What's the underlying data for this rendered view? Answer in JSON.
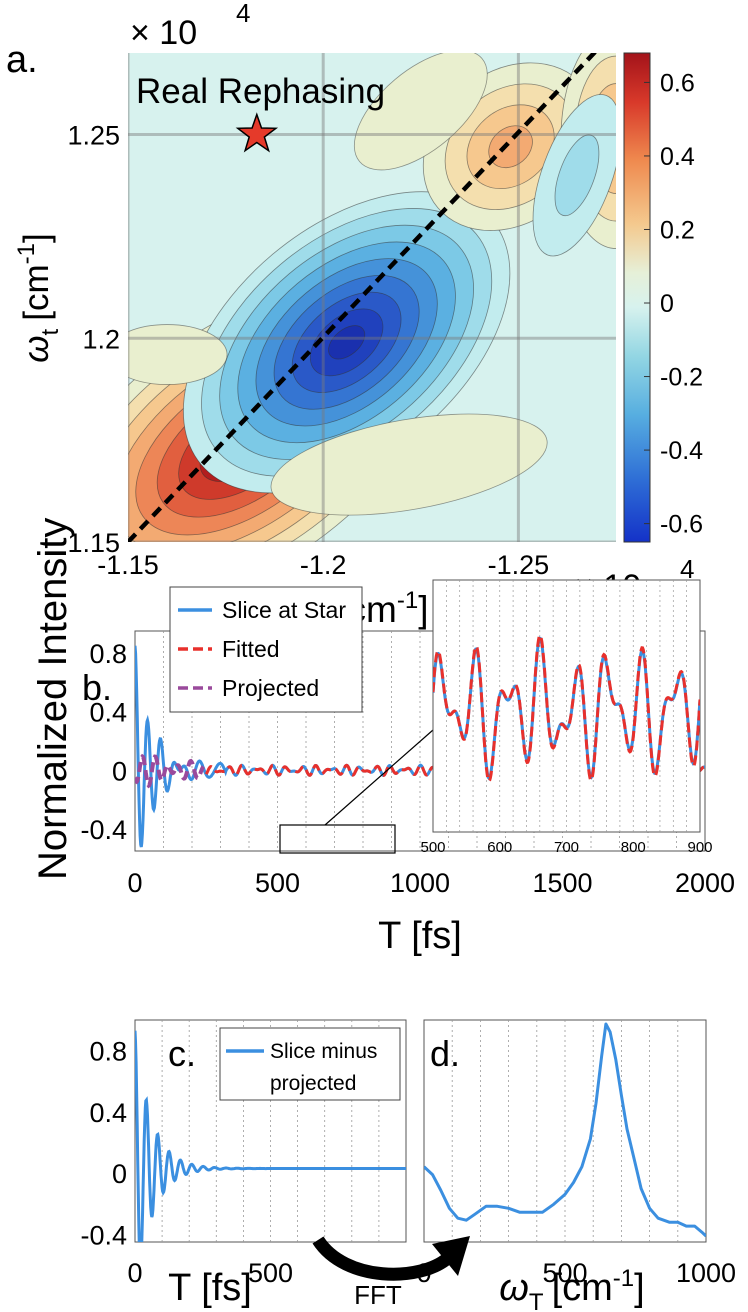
{
  "panel_a": {
    "letter": "a.",
    "title": "Real Rephasing",
    "exp_y": "× 10",
    "exp_y_sup": "4",
    "exp_x": "× 10",
    "exp_x_sup": "4",
    "ylabel_symbol": "ω",
    "ylabel_sub": "t",
    "ylabel_unit": "[cm",
    "ylabel_unit_sup": "-1",
    "ylabel_close": "]",
    "xlabel_symbol": "ω",
    "xlabel_sub": "τ",
    "xlabel_unit": "[cm",
    "xlabel_unit_sup": "-1",
    "xlabel_close": "]"
  },
  "panel_b": {
    "letter": "b.",
    "ylabel": "Normalized Intensity",
    "xlabel": "T [fs]"
  },
  "panel_c": {
    "letter": "c.",
    "xlabel": "T [fs]"
  },
  "panel_d": {
    "letter": "d.",
    "xlabel_symbol": "ω",
    "xlabel_sub": "T",
    "xlabel_unit": "[cm",
    "xlabel_unit_sup": "-1",
    "xlabel_close": "]"
  },
  "fft_label": "FFT",
  "colors": {
    "blue": "#3b8fe0",
    "red": "#e8302c",
    "purple": "#9a4a9c",
    "background_a": "#d7f2ee"
  },
  "chart_data": [
    {
      "id": "a",
      "type": "heatmap",
      "title": "Real Rephasing",
      "xlim": [
        -11500,
        -12750
      ],
      "ylim": [
        11500,
        12700
      ],
      "xticks": [
        -11500,
        -12000,
        -12500
      ],
      "xtick_labels": [
        "-1.15",
        "-1.2",
        "-1.25"
      ],
      "yticks": [
        11500,
        12000,
        12500
      ],
      "ytick_labels": [
        "1.15",
        "1.2",
        "1.25"
      ],
      "grid": true,
      "colorbar": {
        "min": -0.65,
        "max": 0.68,
        "ticks": [
          0.6,
          0.4,
          0.2,
          0,
          -0.2,
          -0.4,
          -0.6
        ],
        "tick_labels": [
          "0.6",
          "0.4",
          "0.2",
          "0",
          "-0.2",
          "-0.4",
          "-0.6"
        ]
      },
      "peaks": [
        {
          "x": -11820,
          "y": 11760,
          "value": 0.68
        },
        {
          "x": -12060,
          "y": 11990,
          "value": -0.65
        },
        {
          "x": -12480,
          "y": 12470,
          "value": 0.3
        },
        {
          "x": -12750,
          "y": 12490,
          "value": 0.25
        },
        {
          "x": -12650,
          "y": 12400,
          "value": -0.15
        }
      ],
      "star": {
        "x": -11830,
        "y": 12500
      },
      "diagonal": true
    },
    {
      "id": "b",
      "type": "line",
      "xlim": [
        0,
        2000
      ],
      "ylim": [
        -0.55,
        0.95
      ],
      "xticks": [
        0,
        500,
        1000,
        1500,
        2000
      ],
      "yticks": [
        -0.4,
        0,
        0.4,
        0.8
      ],
      "ytick_labels": [
        "-0.4",
        "0",
        "0.4",
        "0.8"
      ],
      "legend": [
        "Slice at Star",
        "Fitted",
        "Projected"
      ],
      "legend_position": "top-left",
      "inset": {
        "xlim": [
          500,
          900
        ],
        "xticks": [
          500,
          600,
          700,
          800,
          900
        ]
      }
    },
    {
      "id": "c",
      "type": "line",
      "xlim": [
        0,
        1000
      ],
      "ylim": [
        -0.45,
        1.0
      ],
      "xticks": [
        0,
        500
      ],
      "yticks": [
        -0.4,
        0,
        0.4,
        0.8
      ],
      "ytick_labels": [
        "-0.4",
        "0",
        "0.4",
        "0.8"
      ],
      "legend": [
        "Slice minus projected"
      ],
      "legend_lines": [
        "Slice minus",
        "projected"
      ]
    },
    {
      "id": "d",
      "type": "line",
      "xlim": [
        0,
        1000
      ],
      "ylim": [
        -0.12,
        1.0
      ],
      "xticks": [
        0,
        500,
        1000
      ],
      "x": [
        0,
        30,
        60,
        90,
        120,
        150,
        180,
        220,
        260,
        300,
        340,
        380,
        420,
        460,
        500,
        530,
        560,
        590,
        610,
        630,
        645,
        660,
        680,
        700,
        720,
        745,
        770,
        800,
        830,
        870,
        900,
        930,
        960,
        985,
        1000
      ],
      "y": [
        0.26,
        0.22,
        0.14,
        0.05,
        0.0,
        -0.01,
        0.02,
        0.06,
        0.06,
        0.05,
        0.03,
        0.03,
        0.03,
        0.07,
        0.12,
        0.18,
        0.26,
        0.4,
        0.58,
        0.82,
        0.98,
        0.94,
        0.8,
        0.62,
        0.45,
        0.3,
        0.15,
        0.05,
        0.0,
        -0.02,
        -0.02,
        -0.04,
        -0.04,
        -0.07,
        -0.09
      ]
    }
  ]
}
